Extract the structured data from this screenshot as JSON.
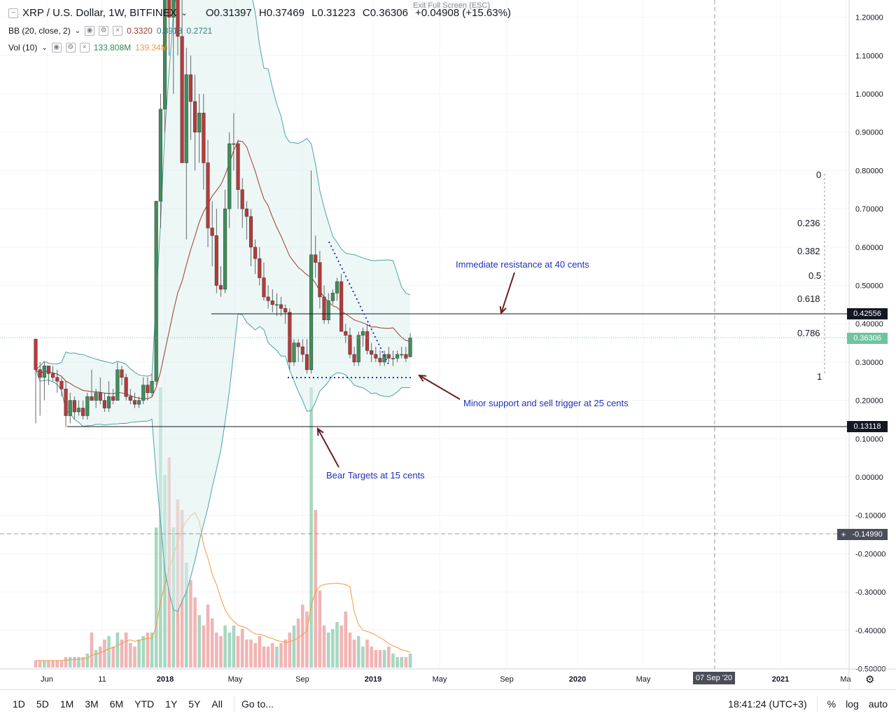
{
  "header": {
    "symbol": "XRP / U.S. Dollar, 1W, BITFINEX",
    "open": "O0.31397",
    "high": "H0.37469",
    "low": "L0.31223",
    "close": "C0.36306",
    "change": "+0.04908 (+15.63%)",
    "bb_label": "BB (20, close, 2)",
    "bb_values": [
      "0.3320",
      "0.3918",
      "0.2721"
    ],
    "vol_label": "Vol (10)",
    "vol_values": [
      "133.808M",
      "139.34M"
    ],
    "exit_fullscreen": "Exit Full Screen (ESC)"
  },
  "annotations": {
    "resistance": "Immediate resistance at 40 cents",
    "support": "Minor support and sell trigger at 25 cents",
    "bear": "Bear Targets at 15 cents"
  },
  "fib_levels": [
    "0",
    "0.236",
    "0.382",
    "0.5",
    "0.618",
    "0.786",
    "1"
  ],
  "price_axis": [
    "1.20000",
    "1.10000",
    "1.00000",
    "0.90000",
    "0.80000",
    "0.70000",
    "0.60000",
    "0.50000",
    "0.40000",
    "0.30000",
    "0.20000",
    "0.10000",
    "0.00000",
    "-0.10000",
    "-0.20000",
    "-0.30000",
    "-0.40000",
    "-0.50000"
  ],
  "price_labels": {
    "resistance": "0.42556",
    "current": "0.36306",
    "bear": "0.13118",
    "crosshair": "-0.14990"
  },
  "time_axis": [
    "Jun",
    "11",
    "2018",
    "May",
    "Sep",
    "2019",
    "May",
    "Sep",
    "2020",
    "May",
    "2021",
    "Ma"
  ],
  "crosshair_date": "07 Sep '20",
  "bottom": {
    "ranges": [
      "1D",
      "5D",
      "1M",
      "3M",
      "6M",
      "YTD",
      "1Y",
      "5Y",
      "All"
    ],
    "goto": "Go to...",
    "time": "18:41:24 (UTC+3)",
    "percent": "%",
    "log": "log",
    "auto": "auto"
  },
  "colors": {
    "up": "#3f8f5a",
    "down": "#b83a3a",
    "band": "#4ba3a6",
    "basis": "#9b3b2d",
    "annotation": "#1f31b8",
    "arrow": "#6b1f1f",
    "vol_up": "#a7d7c0",
    "vol_down": "#f2b4b4",
    "vol_ma": "#f29a3b"
  }
}
